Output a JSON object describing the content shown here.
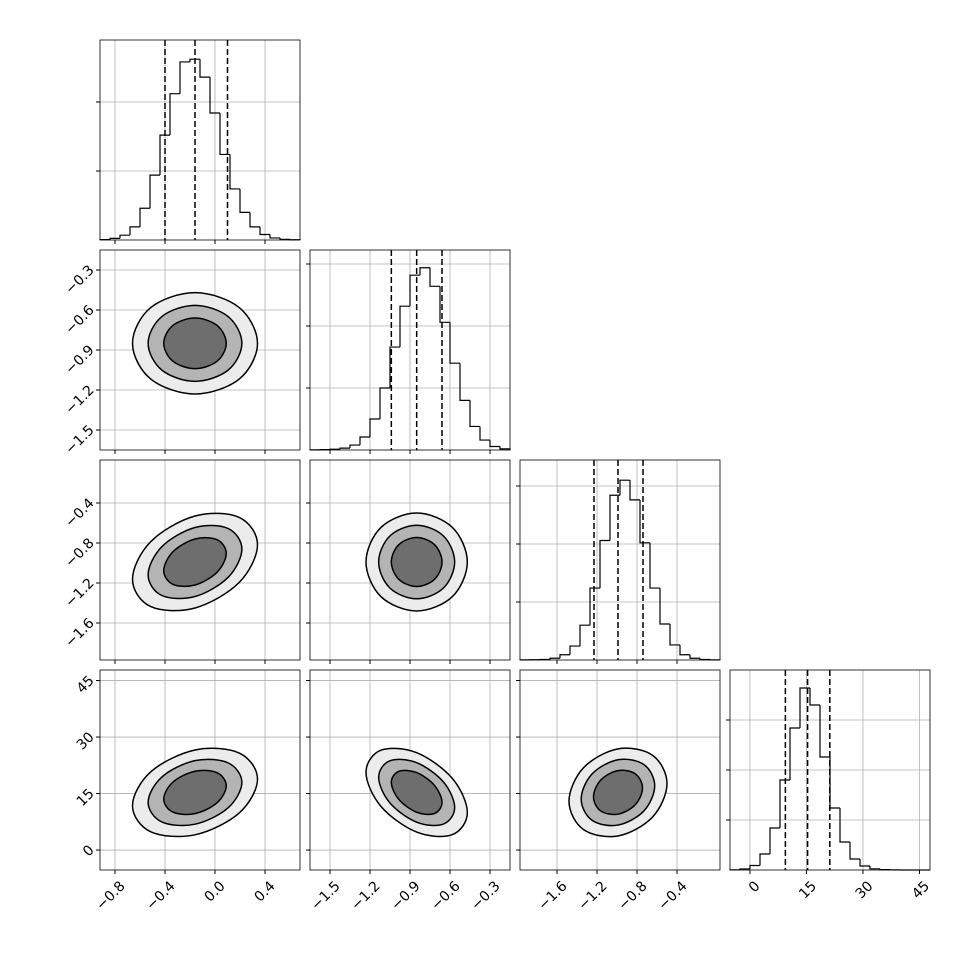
{
  "chart_data": {
    "type": "corner",
    "line_color": "#000000",
    "grid_color": "#b0b0b0",
    "contour_fills": [
      "#ececec",
      "#b4b4b4",
      "#6e6e6e"
    ],
    "grid": true,
    "params": [
      {
        "lim": [
          -0.92,
          0.68
        ],
        "ticks": [
          {
            "value": -0.8,
            "label": "−0.8"
          },
          {
            "value": -0.4,
            "label": "−0.4"
          },
          {
            "value": 0,
            "label": "0.0"
          },
          0.4
        ],
        "quantiles": [
          -0.4,
          -0.16,
          0.1
        ],
        "hist": {
          "bins": [
            -0.92,
            -0.84,
            -0.76,
            -0.68,
            -0.6,
            -0.52,
            -0.44,
            -0.36,
            -0.28,
            -0.2,
            -0.12,
            -0.04,
            0.04,
            0.12,
            0.2,
            0.28,
            0.36,
            0.44,
            0.52,
            0.6,
            0.68
          ],
          "counts": [
            3,
            12,
            35,
            95,
            230,
            470,
            760,
            1060,
            1290,
            1310,
            1180,
            920,
            620,
            370,
            200,
            95,
            40,
            15,
            5,
            2
          ],
          "ylim": [
            0,
            1449
          ],
          "yticks": [
            500,
            1000
          ]
        }
      },
      {
        "lim": [
          -1.65,
          -0.15
        ],
        "ticks": [
          {
            "value": -1.5,
            "label": "−1.5"
          },
          {
            "value": -1.2,
            "label": "−1.2"
          },
          {
            "value": -0.9,
            "label": "−0.9"
          },
          {
            "value": -0.6,
            "label": "−0.6"
          },
          {
            "value": -0.3,
            "label": "−0.3"
          }
        ],
        "quantiles": [
          -1.04,
          -0.85,
          -0.66
        ],
        "hist": {
          "bins": [
            -1.65,
            -1.575,
            -1.5,
            -1.425,
            -1.35,
            -1.275,
            -1.2,
            -1.125,
            -1.05,
            -0.975,
            -0.9,
            -0.825,
            -0.75,
            -0.675,
            -0.6,
            -0.525,
            -0.45,
            -0.375,
            -0.3,
            -0.225,
            -0.15
          ],
          "counts": [
            1,
            3,
            6,
            15,
            40,
            105,
            250,
            500,
            830,
            1160,
            1410,
            1470,
            1320,
            1030,
            700,
            400,
            190,
            80,
            28,
            9
          ],
          "ylim": [
            0,
            1613
          ],
          "yticks": [
            500,
            1000,
            1500
          ]
        }
      },
      {
        "lim": [
          -1.97,
          0.03
        ],
        "ticks": [
          {
            "value": -1.6,
            "label": "−1.6"
          },
          {
            "value": -1.2,
            "label": "−1.2"
          },
          {
            "value": -0.8,
            "label": "−0.8"
          },
          {
            "value": -0.4,
            "label": "−0.4"
          }
        ],
        "quantiles": [
          -1.23,
          -0.99,
          -0.74
        ],
        "hist": {
          "bins": [
            -1.97,
            -1.87,
            -1.77,
            -1.67,
            -1.57,
            -1.47,
            -1.37,
            -1.27,
            -1.17,
            -1.07,
            -0.97,
            -0.87,
            -0.77,
            -0.67,
            -0.57,
            -0.47,
            -0.37,
            -0.27,
            -0.17,
            -0.07,
            0.03
          ],
          "counts": [
            1,
            2,
            5,
            15,
            45,
            120,
            300,
            620,
            1030,
            1420,
            1550,
            1380,
            1010,
            620,
            310,
            130,
            45,
            15,
            4,
            1
          ],
          "ylim": [
            0,
            1724
          ],
          "yticks": [
            500,
            1000,
            1500
          ]
        }
      },
      {
        "lim": [
          -5.3,
          47.8
        ],
        "ticks": [
          0,
          15,
          30,
          45
        ],
        "quantiles": [
          9.4,
          15.3,
          21.2
        ],
        "hist": {
          "bins": [
            -5.3,
            -2.645,
            0.01,
            2.665,
            5.32,
            7.975,
            10.63,
            13.285,
            15.94,
            18.595,
            21.25,
            23.905,
            26.56,
            29.215,
            31.87,
            34.525,
            37.18,
            39.835,
            42.49,
            45.145,
            47.8
          ],
          "counts": [
            2,
            10,
            45,
            160,
            420,
            900,
            1420,
            1820,
            1650,
            1130,
            620,
            280,
            110,
            40,
            12,
            4,
            1,
            0,
            0,
            0
          ],
          "ylim": [
            0,
            2000
          ],
          "yticks": [
            500,
            1000,
            1500
          ]
        }
      }
    ],
    "panels": [
      [
        {
          "contours": [
            {
              "x": [
                0.34,
                0.194,
                -0.16,
                -0.514,
                -0.66,
                -0.514,
                -0.16,
                0.194
              ],
              "y": [
                -0.85,
                -0.582,
                -0.47,
                -0.582,
                -0.85,
                -1.118,
                -1.23,
                -1.118
              ]
            },
            {
              "x": [
                0.215,
                0.105,
                -0.16,
                -0.425,
                -0.535,
                -0.425,
                -0.16,
                0.105
              ],
              "y": [
                -0.85,
                -0.649,
                -0.565,
                -0.649,
                -0.85,
                -1.051,
                -1.135,
                -1.051
              ]
            },
            {
              "x": [
                0.09,
                0.017,
                -0.16,
                -0.337,
                -0.41,
                -0.337,
                -0.16,
                0.017
              ],
              "y": [
                -0.85,
                -0.716,
                -0.66,
                -0.716,
                -0.85,
                -0.984,
                -1.04,
                -0.984
              ]
            }
          ]
        }
      ],
      [
        {
          "contours": [
            {
              "x": [
                0.34,
                0.194,
                -0.16,
                -0.514,
                -0.66,
                -0.514,
                -0.16,
                0.194
              ],
              "y": [
                -0.818,
                -0.544,
                -0.53,
                -0.786,
                -1.162,
                -1.436,
                -1.45,
                -1.194
              ]
            },
            {
              "x": [
                0.215,
                0.105,
                -0.16,
                -0.425,
                -0.535,
                -0.425,
                -0.16,
                0.105
              ],
              "y": [
                -0.861,
                -0.655,
                -0.645,
                -0.837,
                -1.119,
                -1.325,
                -1.335,
                -1.143
              ]
            },
            {
              "x": [
                0.09,
                0.017,
                -0.16,
                -0.337,
                -0.41,
                -0.337,
                -0.16,
                0.017
              ],
              "y": [
                -0.904,
                -0.767,
                -0.76,
                -0.888,
                -1.076,
                -1.213,
                -1.22,
                -1.092
              ]
            }
          ]
        },
        {
          "contours": [
            {
              "x": [
                -0.47,
                -0.582,
                -0.85,
                -1.118,
                -1.23,
                -1.118,
                -0.85,
                -0.582
              ],
              "y": [
                -0.99,
                -0.644,
                -0.5,
                -0.644,
                -0.99,
                -1.336,
                -1.48,
                -1.336
              ]
            },
            {
              "x": [
                -0.565,
                -0.649,
                -0.85,
                -1.051,
                -1.135,
                -1.051,
                -0.85,
                -0.649
              ],
              "y": [
                -0.99,
                -0.73,
                -0.623,
                -0.73,
                -0.99,
                -1.25,
                -1.358,
                -1.25
              ]
            },
            {
              "x": [
                -0.66,
                -0.716,
                -0.85,
                -0.984,
                -1.04,
                -0.984,
                -0.85,
                -0.716
              ],
              "y": [
                -0.99,
                -0.817,
                -0.745,
                -0.817,
                -0.99,
                -1.163,
                -1.235,
                -1.163
              ]
            }
          ]
        }
      ],
      [
        {
          "contours": [
            {
              "x": [
                0.34,
                0.194,
                -0.16,
                -0.514,
                -0.66,
                -0.514,
                -0.16,
                0.194
              ],
              "y": [
                18.84,
                25.76,
                26.56,
                20.76,
                11.76,
                4.84,
                4.04,
                9.84
              ]
            },
            {
              "x": [
                0.215,
                0.105,
                -0.16,
                -0.425,
                -0.535,
                -0.425,
                -0.16,
                0.105
              ],
              "y": [
                17.96,
                23.14,
                23.74,
                19.39,
                12.64,
                7.46,
                6.86,
                11.21
              ]
            },
            {
              "x": [
                0.09,
                0.017,
                -0.16,
                -0.337,
                -0.41,
                -0.337,
                -0.16,
                0.017
              ],
              "y": [
                17.07,
                20.53,
                20.93,
                18.03,
                13.53,
                10.07,
                9.67,
                12.57
              ]
            }
          ]
        },
        {
          "contours": [
            {
              "x": [
                -0.47,
                -0.582,
                -0.85,
                -1.118,
                -1.23,
                -1.118,
                -0.85,
                -0.582
              ],
              "y": [
                9.98,
                19,
                25.84,
                26.5,
                20.62,
                11.6,
                4.76,
                4.1
              ]
            },
            {
              "x": [
                -0.565,
                -0.649,
                -0.85,
                -1.051,
                -1.135,
                -1.051,
                -0.85,
                -0.649
              ],
              "y": [
                11.31,
                18.07,
                23.2,
                23.7,
                19.29,
                12.53,
                7.4,
                6.9
              ]
            },
            {
              "x": [
                -0.66,
                -0.716,
                -0.85,
                -0.984,
                -1.04,
                -0.984,
                -0.85,
                -0.716
              ],
              "y": [
                12.64,
                17.15,
                20.57,
                20.9,
                17.96,
                13.45,
                10.03,
                9.7
              ]
            }
          ]
        },
        {
          "contours": [
            {
              "x": [
                -0.5,
                -0.644,
                -0.99,
                -1.336,
                -1.48,
                -1.336,
                -0.99,
                -0.644
              ],
              "y": [
                17.66,
                25.14,
                26.86,
                21.82,
                12.94,
                5.46,
                3.74,
                8.78
              ]
            },
            {
              "x": [
                -0.623,
                -0.73,
                -0.99,
                -1.25,
                -1.358,
                -1.25,
                -0.99,
                -0.73
              ],
              "y": [
                17.07,
                22.68,
                23.97,
                20.19,
                13.53,
                7.92,
                6.63,
                10.41
              ]
            },
            {
              "x": [
                -0.745,
                -0.817,
                -0.99,
                -1.163,
                -1.235,
                -1.163,
                -0.99,
                -0.817
              ],
              "y": [
                16.48,
                20.22,
                21.08,
                18.56,
                14.12,
                10.38,
                9.52,
                12.04
              ]
            }
          ]
        }
      ]
    ]
  }
}
